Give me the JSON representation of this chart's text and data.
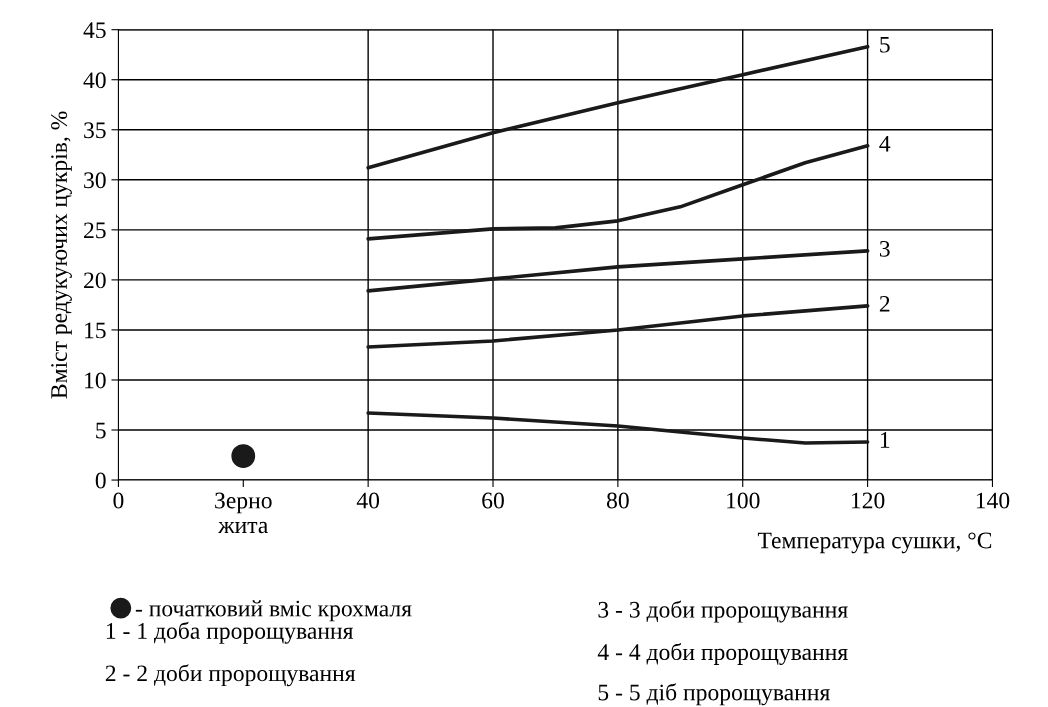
{
  "chart_data": {
    "type": "line",
    "xlabel": "Температура сушки, °C",
    "ylabel": "Вміст редукуючих цукрів, %",
    "xlim": [
      0,
      140
    ],
    "xticks": [
      0,
      {
        "value": 20,
        "label": "Зерно\nжита"
      },
      40,
      60,
      80,
      100,
      120,
      140
    ],
    "ylim": [
      0,
      45
    ],
    "yticks": [
      0,
      5,
      10,
      15,
      20,
      25,
      30,
      35,
      40,
      45
    ],
    "grid": true,
    "legend": "bottom left",
    "series": [
      {
        "type": "scatter",
        "name": "- початковий вміс крохмаля",
        "color": "#1a1a1a",
        "marker": "circle",
        "x": [
          20
        ],
        "values": [
          2.4
        ]
      },
      {
        "name": "1",
        "color": "#1a1a1a",
        "x": [
          40,
          60,
          80,
          100,
          110,
          120
        ],
        "values": [
          6.7,
          6.2,
          5.4,
          4.2,
          3.7,
          3.8
        ]
      },
      {
        "name": "2",
        "color": "#1a1a1a",
        "x": [
          40,
          60,
          80,
          100,
          120
        ],
        "values": [
          13.3,
          13.9,
          15.0,
          16.4,
          17.4
        ]
      },
      {
        "name": "3",
        "color": "#1a1a1a",
        "x": [
          40,
          60,
          80,
          100,
          120
        ],
        "values": [
          18.9,
          20.1,
          21.3,
          22.1,
          22.9
        ]
      },
      {
        "name": "4",
        "color": "#1a1a1a",
        "x": [
          40,
          60,
          70,
          80,
          90,
          100,
          110,
          120
        ],
        "values": [
          24.1,
          25.1,
          25.2,
          25.9,
          27.3,
          29.5,
          31.7,
          33.4
        ]
      },
      {
        "name": "5",
        "color": "#1a1a1a",
        "x": [
          40,
          60,
          80,
          100,
          120
        ],
        "values": [
          31.2,
          34.7,
          37.7,
          40.5,
          43.3
        ]
      }
    ],
    "annotations": [
      "1 - 1 доба пророщування",
      "2 - 2 доби пророщування",
      "3 - 3 доби пророщування",
      "4 - 4 доби пророщування",
      "5 - 5 діб пророщування"
    ]
  }
}
